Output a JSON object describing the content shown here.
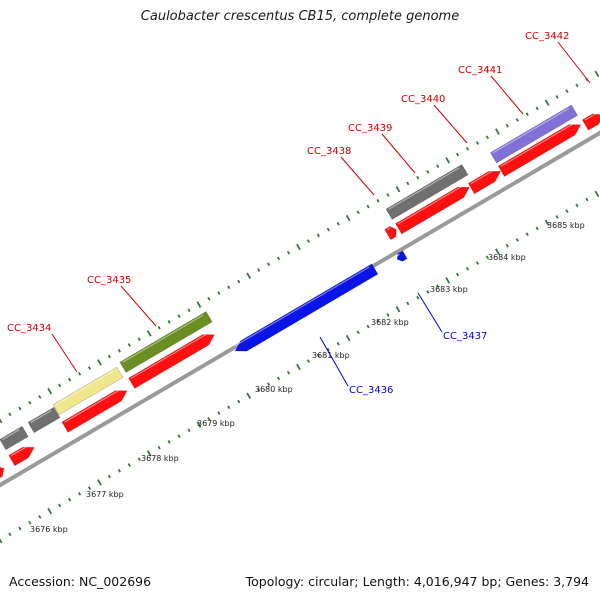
{
  "title": "Caulobacter crescentus CB15, complete genome",
  "footer": {
    "accession": "Accession: NC_002696",
    "summary": "Topology: circular; Length: 4,016,947 bp; Genes: 3,794"
  },
  "colors": {
    "backbone": "#9a9a9a",
    "tick": "#2e7d32",
    "forward_label": "#cc0000",
    "reverse_label": "#0000cc",
    "cds_forward": "#ff1010",
    "cds_reverse": "#0a14e6",
    "cog_gray": "#707070",
    "cog_yellow": "#f0e68c",
    "cog_olive": "#6b8e23",
    "cog_purple": "#8070d8"
  },
  "scale_labels": [
    "3676 kbp",
    "3677 kbp",
    "3678 kbp",
    "3679 kbp",
    "3680 kbp",
    "3681 kbp",
    "3682 kbp",
    "3683 kbp",
    "3684 kbp",
    "3685 kbp"
  ],
  "genes": [
    {
      "name": "CC_3434",
      "strand": "forward",
      "cog": "yellow"
    },
    {
      "name": "CC_3435",
      "strand": "forward",
      "cog": "olive"
    },
    {
      "name": "CC_3436",
      "strand": "reverse",
      "cog": "none"
    },
    {
      "name": "CC_3437",
      "strand": "reverse",
      "cog": "none"
    },
    {
      "name": "CC_3438",
      "strand": "forward",
      "cog": "none"
    },
    {
      "name": "CC_3439",
      "strand": "forward",
      "cog": "gray"
    },
    {
      "name": "CC_3440",
      "strand": "forward",
      "cog": "none"
    },
    {
      "name": "CC_3441",
      "strand": "forward",
      "cog": "purple"
    },
    {
      "name": "CC_3442",
      "strand": "forward",
      "cog": "none"
    }
  ]
}
